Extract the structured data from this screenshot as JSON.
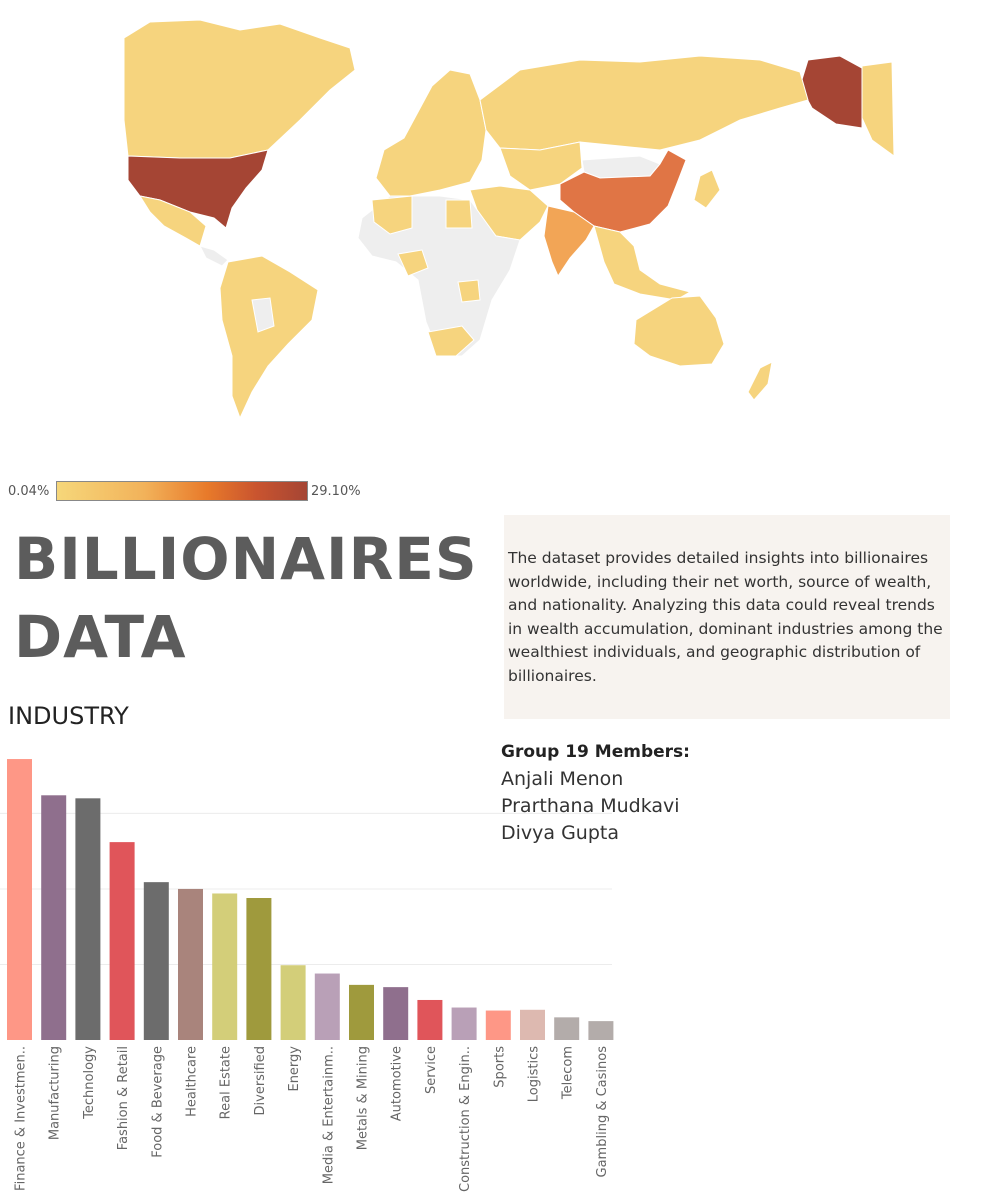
{
  "legend": {
    "min_label": "0.04%",
    "max_label": "29.10%",
    "colors": [
      "#f6d77a",
      "#e87a2a",
      "#a54534"
    ]
  },
  "title": {
    "line1": "BILLIONAIRES",
    "line2": "DATA"
  },
  "description": "The dataset provides detailed insights into billionaires worldwide, including their net worth, source of wealth, and nationality. Analyzing this data could reveal trends in wealth accumulation, dominant industries among the wealthiest individuals, and geographic distribution of billionaires.",
  "members": {
    "heading": "Group 19 Members:",
    "names": [
      "Anjali Menon",
      "Prarthana Mudkavi",
      "Divya Gupta"
    ]
  },
  "industry_heading": "INDUSTRY",
  "chart_data": {
    "type": "bar",
    "categories": [
      "Finance & Investmen..",
      "Manufacturing",
      "Technology",
      "Fashion & Retail",
      "Food & Beverage",
      "Healthcare",
      "Real Estate",
      "Diversified",
      "Energy",
      "Media & Entertainm..",
      "Metals & Mining",
      "Automotive",
      "Service",
      "Construction & Engin..",
      "Sports",
      "Logistics",
      "Telecom",
      "Gambling & Casinos"
    ],
    "values": [
      372,
      324,
      320,
      262,
      209,
      200,
      194,
      188,
      99,
      88,
      73,
      70,
      53,
      43,
      39,
      40,
      30,
      25
    ],
    "colors": [
      "#fe9786",
      "#8f6f8d",
      "#6c6c6c",
      "#e0555a",
      "#6c6c6c",
      "#a9847c",
      "#d3ce79",
      "#9f9a3d",
      "#d3ce79",
      "#b9a0b7",
      "#9f9a3d",
      "#8f6f8d",
      "#e0555a",
      "#b9a0b7",
      "#fe9786",
      "#ddb9b0",
      "#b3acaa",
      "#b3acaa"
    ],
    "ylim": [
      0,
      380
    ],
    "gridlines": [
      100,
      200,
      300
    ],
    "grid": true
  }
}
